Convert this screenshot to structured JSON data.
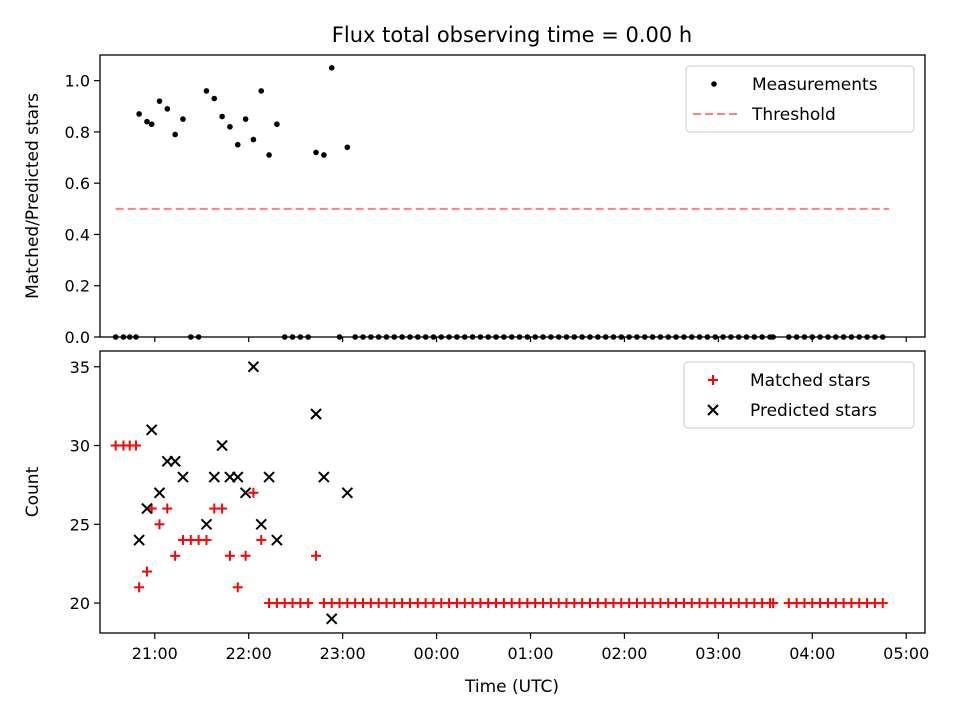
{
  "figure": {
    "title": "Flux total observing time = 0.00 h"
  },
  "colors": {
    "measurement": "#000000",
    "threshold": "#ff7f7f",
    "matched": "#ff0000",
    "predicted": "#000000"
  },
  "chart_data": [
    {
      "type": "scatter",
      "title": "Flux total observing time = 0.00 h",
      "ylabel": "Matched/Predicted stars",
      "xlabel": "",
      "xlim": [
        "20:25",
        "05:12"
      ],
      "ylim": [
        0,
        1.1
      ],
      "yticks": [
        "0.0",
        "0.2",
        "0.4",
        "0.6",
        "0.8",
        "1.0"
      ],
      "legend_position": "top-right",
      "legend": [
        {
          "label": "Measurements",
          "kind": "dot"
        },
        {
          "label": "Threshold",
          "kind": "dash"
        }
      ],
      "threshold": {
        "value": 0.5,
        "x_start": "20:35",
        "x_end": "04:49"
      },
      "series": [
        {
          "name": "Measurements",
          "marker": "dot",
          "points": [
            {
              "x": "20:35",
              "y": 0
            },
            {
              "x": "20:40",
              "y": 0
            },
            {
              "x": "20:44",
              "y": 0
            },
            {
              "x": "20:48",
              "y": 0
            },
            {
              "x": "20:50",
              "y": 0.87
            },
            {
              "x": "20:55",
              "y": 0.84
            },
            {
              "x": "20:58",
              "y": 0.83
            },
            {
              "x": "21:03",
              "y": 0.92
            },
            {
              "x": "21:08",
              "y": 0.89
            },
            {
              "x": "21:13",
              "y": 0.79
            },
            {
              "x": "21:18",
              "y": 0.85
            },
            {
              "x": "21:23",
              "y": 0
            },
            {
              "x": "21:28",
              "y": 0
            },
            {
              "x": "21:33",
              "y": 0.96
            },
            {
              "x": "21:38",
              "y": 0.93
            },
            {
              "x": "21:43",
              "y": 0.86
            },
            {
              "x": "21:48",
              "y": 0.82
            },
            {
              "x": "21:53",
              "y": 0.75
            },
            {
              "x": "21:58",
              "y": 0.85
            },
            {
              "x": "22:03",
              "y": 0.77
            },
            {
              "x": "22:08",
              "y": 0.96
            },
            {
              "x": "22:13",
              "y": 0.71
            },
            {
              "x": "22:18",
              "y": 0.83
            },
            {
              "x": "22:23",
              "y": 0
            },
            {
              "x": "22:28",
              "y": 0
            },
            {
              "x": "22:33",
              "y": 0
            },
            {
              "x": "22:38",
              "y": 0
            },
            {
              "x": "22:43",
              "y": 0.72
            },
            {
              "x": "22:48",
              "y": 0.71
            },
            {
              "x": "22:53",
              "y": 1.05
            },
            {
              "x": "22:58",
              "y": 0
            },
            {
              "x": "23:03",
              "y": 0.74
            },
            {
              "x": "23:08",
              "y": 0
            },
            {
              "x": "23:13",
              "y": 0
            },
            {
              "x": "23:18",
              "y": 0
            },
            {
              "x": "23:23",
              "y": 0
            },
            {
              "x": "23:28",
              "y": 0
            },
            {
              "x": "23:33",
              "y": 0
            },
            {
              "x": "23:38",
              "y": 0
            },
            {
              "x": "23:43",
              "y": 0
            },
            {
              "x": "23:48",
              "y": 0
            },
            {
              "x": "23:53",
              "y": 0
            },
            {
              "x": "23:58",
              "y": 0
            },
            {
              "x": "00:03",
              "y": 0
            },
            {
              "x": "00:08",
              "y": 0
            },
            {
              "x": "00:13",
              "y": 0
            },
            {
              "x": "00:18",
              "y": 0
            },
            {
              "x": "00:23",
              "y": 0
            },
            {
              "x": "00:28",
              "y": 0
            },
            {
              "x": "00:33",
              "y": 0
            },
            {
              "x": "00:38",
              "y": 0
            },
            {
              "x": "00:43",
              "y": 0
            },
            {
              "x": "00:48",
              "y": 0
            },
            {
              "x": "00:53",
              "y": 0
            },
            {
              "x": "00:58",
              "y": 0
            },
            {
              "x": "01:03",
              "y": 0
            },
            {
              "x": "01:08",
              "y": 0
            },
            {
              "x": "01:13",
              "y": 0
            },
            {
              "x": "01:18",
              "y": 0
            },
            {
              "x": "01:23",
              "y": 0
            },
            {
              "x": "01:28",
              "y": 0
            },
            {
              "x": "01:33",
              "y": 0
            },
            {
              "x": "01:38",
              "y": 0
            },
            {
              "x": "01:43",
              "y": 0
            },
            {
              "x": "01:48",
              "y": 0
            },
            {
              "x": "01:53",
              "y": 0
            },
            {
              "x": "01:58",
              "y": 0
            },
            {
              "x": "02:03",
              "y": 0
            },
            {
              "x": "02:08",
              "y": 0
            },
            {
              "x": "02:13",
              "y": 0
            },
            {
              "x": "02:18",
              "y": 0
            },
            {
              "x": "02:23",
              "y": 0
            },
            {
              "x": "02:28",
              "y": 0
            },
            {
              "x": "02:33",
              "y": 0
            },
            {
              "x": "02:38",
              "y": 0
            },
            {
              "x": "02:43",
              "y": 0
            },
            {
              "x": "02:48",
              "y": 0
            },
            {
              "x": "02:53",
              "y": 0
            },
            {
              "x": "02:58",
              "y": 0
            },
            {
              "x": "03:03",
              "y": 0
            },
            {
              "x": "03:08",
              "y": 0
            },
            {
              "x": "03:13",
              "y": 0
            },
            {
              "x": "03:18",
              "y": 0
            },
            {
              "x": "03:23",
              "y": 0
            },
            {
              "x": "03:28",
              "y": 0
            },
            {
              "x": "03:33",
              "y": 0
            },
            {
              "x": "03:35",
              "y": 0
            },
            {
              "x": "03:45",
              "y": 0
            },
            {
              "x": "03:50",
              "y": 0
            },
            {
              "x": "03:55",
              "y": 0
            },
            {
              "x": "04:00",
              "y": 0
            },
            {
              "x": "04:05",
              "y": 0
            },
            {
              "x": "04:10",
              "y": 0
            },
            {
              "x": "04:15",
              "y": 0
            },
            {
              "x": "04:20",
              "y": 0
            },
            {
              "x": "04:25",
              "y": 0
            },
            {
              "x": "04:30",
              "y": 0
            },
            {
              "x": "04:35",
              "y": 0
            },
            {
              "x": "04:40",
              "y": 0
            },
            {
              "x": "04:45",
              "y": 0
            }
          ]
        }
      ]
    },
    {
      "type": "scatter",
      "title": "",
      "xlabel": "Time (UTC)",
      "ylabel": "Count",
      "xlim": [
        "20:25",
        "05:12"
      ],
      "ylim": [
        18.1,
        36.0
      ],
      "yticks": [
        "20",
        "25",
        "30",
        "35"
      ],
      "xticks": [
        "21:00",
        "22:00",
        "23:00",
        "00:00",
        "01:00",
        "02:00",
        "03:00",
        "04:00",
        "05:00"
      ],
      "legend_position": "top-right",
      "legend": [
        {
          "label": "Matched stars",
          "kind": "plus"
        },
        {
          "label": "Predicted stars",
          "kind": "x"
        }
      ],
      "series": [
        {
          "name": "Matched stars",
          "marker": "plus",
          "points": [
            {
              "x": "20:35",
              "y": 30
            },
            {
              "x": "20:40",
              "y": 30
            },
            {
              "x": "20:44",
              "y": 30
            },
            {
              "x": "20:48",
              "y": 30
            },
            {
              "x": "20:50",
              "y": 21
            },
            {
              "x": "20:55",
              "y": 22
            },
            {
              "x": "20:58",
              "y": 26
            },
            {
              "x": "21:03",
              "y": 25
            },
            {
              "x": "21:08",
              "y": 26
            },
            {
              "x": "21:13",
              "y": 23
            },
            {
              "x": "21:18",
              "y": 24
            },
            {
              "x": "21:23",
              "y": 24
            },
            {
              "x": "21:28",
              "y": 24
            },
            {
              "x": "21:33",
              "y": 24
            },
            {
              "x": "21:38",
              "y": 26
            },
            {
              "x": "21:43",
              "y": 26
            },
            {
              "x": "21:48",
              "y": 23
            },
            {
              "x": "21:53",
              "y": 21
            },
            {
              "x": "21:58",
              "y": 23
            },
            {
              "x": "22:03",
              "y": 27
            },
            {
              "x": "22:08",
              "y": 24
            },
            {
              "x": "22:13",
              "y": 20
            },
            {
              "x": "22:18",
              "y": 20
            },
            {
              "x": "22:23",
              "y": 20
            },
            {
              "x": "22:28",
              "y": 20
            },
            {
              "x": "22:33",
              "y": 20
            },
            {
              "x": "22:38",
              "y": 20
            },
            {
              "x": "22:43",
              "y": 23
            },
            {
              "x": "22:48",
              "y": 20
            },
            {
              "x": "22:53",
              "y": 20
            },
            {
              "x": "22:58",
              "y": 20
            },
            {
              "x": "23:03",
              "y": 20
            },
            {
              "x": "23:08",
              "y": 20
            },
            {
              "x": "23:13",
              "y": 20
            },
            {
              "x": "23:18",
              "y": 20
            },
            {
              "x": "23:23",
              "y": 20
            },
            {
              "x": "23:28",
              "y": 20
            },
            {
              "x": "23:33",
              "y": 20
            },
            {
              "x": "23:38",
              "y": 20
            },
            {
              "x": "23:43",
              "y": 20
            },
            {
              "x": "23:48",
              "y": 20
            },
            {
              "x": "23:53",
              "y": 20
            },
            {
              "x": "23:58",
              "y": 20
            },
            {
              "x": "00:03",
              "y": 20
            },
            {
              "x": "00:08",
              "y": 20
            },
            {
              "x": "00:13",
              "y": 20
            },
            {
              "x": "00:18",
              "y": 20
            },
            {
              "x": "00:23",
              "y": 20
            },
            {
              "x": "00:28",
              "y": 20
            },
            {
              "x": "00:33",
              "y": 20
            },
            {
              "x": "00:38",
              "y": 20
            },
            {
              "x": "00:43",
              "y": 20
            },
            {
              "x": "00:48",
              "y": 20
            },
            {
              "x": "00:53",
              "y": 20
            },
            {
              "x": "00:58",
              "y": 20
            },
            {
              "x": "01:03",
              "y": 20
            },
            {
              "x": "01:08",
              "y": 20
            },
            {
              "x": "01:13",
              "y": 20
            },
            {
              "x": "01:18",
              "y": 20
            },
            {
              "x": "01:23",
              "y": 20
            },
            {
              "x": "01:28",
              "y": 20
            },
            {
              "x": "01:33",
              "y": 20
            },
            {
              "x": "01:38",
              "y": 20
            },
            {
              "x": "01:43",
              "y": 20
            },
            {
              "x": "01:48",
              "y": 20
            },
            {
              "x": "01:53",
              "y": 20
            },
            {
              "x": "01:58",
              "y": 20
            },
            {
              "x": "02:03",
              "y": 20
            },
            {
              "x": "02:08",
              "y": 20
            },
            {
              "x": "02:13",
              "y": 20
            },
            {
              "x": "02:18",
              "y": 20
            },
            {
              "x": "02:23",
              "y": 20
            },
            {
              "x": "02:28",
              "y": 20
            },
            {
              "x": "02:33",
              "y": 20
            },
            {
              "x": "02:38",
              "y": 20
            },
            {
              "x": "02:43",
              "y": 20
            },
            {
              "x": "02:48",
              "y": 20
            },
            {
              "x": "02:53",
              "y": 20
            },
            {
              "x": "02:58",
              "y": 20
            },
            {
              "x": "03:03",
              "y": 20
            },
            {
              "x": "03:08",
              "y": 20
            },
            {
              "x": "03:13",
              "y": 20
            },
            {
              "x": "03:18",
              "y": 20
            },
            {
              "x": "03:23",
              "y": 20
            },
            {
              "x": "03:28",
              "y": 20
            },
            {
              "x": "03:33",
              "y": 20
            },
            {
              "x": "03:35",
              "y": 20
            },
            {
              "x": "03:45",
              "y": 20
            },
            {
              "x": "03:50",
              "y": 20
            },
            {
              "x": "03:55",
              "y": 20
            },
            {
              "x": "04:00",
              "y": 20
            },
            {
              "x": "04:05",
              "y": 20
            },
            {
              "x": "04:10",
              "y": 20
            },
            {
              "x": "04:15",
              "y": 20
            },
            {
              "x": "04:20",
              "y": 20
            },
            {
              "x": "04:25",
              "y": 20
            },
            {
              "x": "04:30",
              "y": 20
            },
            {
              "x": "04:35",
              "y": 20
            },
            {
              "x": "04:40",
              "y": 20
            },
            {
              "x": "04:45",
              "y": 20
            }
          ]
        },
        {
          "name": "Predicted stars",
          "marker": "x",
          "points": [
            {
              "x": "20:50",
              "y": 24
            },
            {
              "x": "20:55",
              "y": 26
            },
            {
              "x": "20:58",
              "y": 31
            },
            {
              "x": "21:03",
              "y": 27
            },
            {
              "x": "21:08",
              "y": 29
            },
            {
              "x": "21:13",
              "y": 29
            },
            {
              "x": "21:18",
              "y": 28
            },
            {
              "x": "21:33",
              "y": 25
            },
            {
              "x": "21:38",
              "y": 28
            },
            {
              "x": "21:43",
              "y": 30
            },
            {
              "x": "21:48",
              "y": 28
            },
            {
              "x": "21:53",
              "y": 28
            },
            {
              "x": "21:58",
              "y": 27
            },
            {
              "x": "22:03",
              "y": 35
            },
            {
              "x": "22:08",
              "y": 25
            },
            {
              "x": "22:13",
              "y": 28
            },
            {
              "x": "22:18",
              "y": 24
            },
            {
              "x": "22:43",
              "y": 32
            },
            {
              "x": "22:48",
              "y": 28
            },
            {
              "x": "22:53",
              "y": 19
            },
            {
              "x": "23:03",
              "y": 27
            }
          ]
        }
      ]
    }
  ]
}
